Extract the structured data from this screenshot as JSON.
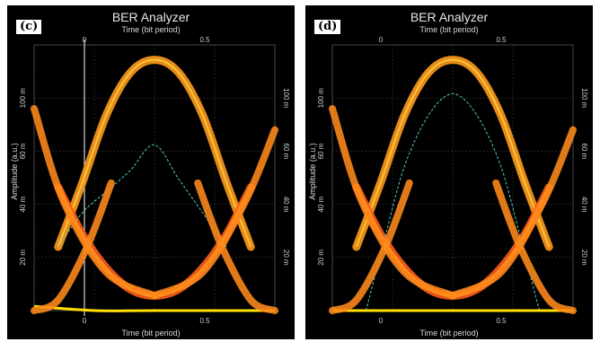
{
  "chart_data": [
    {
      "panel": "(c)",
      "type": "line",
      "title": "BER Analyzer",
      "xlabel": "Time (bit period)",
      "ylabel": "Amplitude (a.u.)",
      "xlim": [
        0,
        1
      ],
      "ylim": [
        0,
        1.25
      ],
      "x_ticks_top": [
        "0",
        "0.5"
      ],
      "x_ticks_bottom": [
        "0",
        "0.5"
      ],
      "y_ticks": [
        "20 m",
        "40 m",
        "60 m",
        "100 m"
      ],
      "y_ticks_right": [
        "20 m",
        "40 m",
        "60 m",
        "100 m"
      ],
      "cursor_x": 0,
      "grid": true,
      "series": [
        {
          "role": "eye-top",
          "color": "#ff9a1a",
          "x": [
            0.1,
            0.2,
            0.3,
            0.4,
            0.5,
            0.6,
            0.7,
            0.8,
            0.9
          ],
          "y": [
            0.3,
            0.6,
            0.92,
            1.12,
            1.18,
            1.12,
            0.92,
            0.6,
            0.3
          ]
        },
        {
          "role": "eye-bottom",
          "color": "#ff5a1a",
          "x": [
            0.1,
            0.2,
            0.3,
            0.4,
            0.5,
            0.6,
            0.7,
            0.8,
            0.9
          ],
          "y": [
            0.58,
            0.36,
            0.2,
            0.1,
            0.07,
            0.1,
            0.2,
            0.36,
            0.58
          ]
        },
        {
          "role": "q-factor",
          "color": "#4fd0c0",
          "x": [
            0.1,
            0.2,
            0.3,
            0.4,
            0.5,
            0.6,
            0.7,
            0.8
          ],
          "y": [
            0.3,
            0.46,
            0.56,
            0.66,
            0.78,
            0.62,
            0.46,
            0.3
          ]
        },
        {
          "role": "threshold",
          "color": "#ffe000",
          "x": [
            0,
            0.25,
            0.5,
            0.75,
            1.0
          ],
          "y": [
            0.02,
            0.0,
            0.0,
            0.0,
            0.0
          ]
        }
      ]
    },
    {
      "panel": "(d)",
      "type": "line",
      "title": "BER Analyzer",
      "xlabel": "Time (bit period)",
      "ylabel": "Amplitude (a.u.)",
      "xlim": [
        0,
        1
      ],
      "ylim": [
        0,
        1.25
      ],
      "x_ticks_top": [
        "0",
        "0.5"
      ],
      "x_ticks_bottom": [
        "0",
        "0.5"
      ],
      "y_ticks": [
        "20 m",
        "40 m",
        "60 m",
        "100 m"
      ],
      "y_ticks_right": [
        "20 m",
        "40 m",
        "60 m",
        "100 m"
      ],
      "grid": true,
      "series": [
        {
          "role": "eye-top",
          "color": "#ff9a1a",
          "x": [
            0.1,
            0.2,
            0.3,
            0.4,
            0.5,
            0.6,
            0.7,
            0.8,
            0.9
          ],
          "y": [
            0.3,
            0.6,
            0.92,
            1.12,
            1.18,
            1.12,
            0.92,
            0.6,
            0.3
          ]
        },
        {
          "role": "eye-bottom",
          "color": "#ff5a1a",
          "x": [
            0.1,
            0.2,
            0.3,
            0.4,
            0.5,
            0.6,
            0.7,
            0.8,
            0.9
          ],
          "y": [
            0.58,
            0.36,
            0.2,
            0.1,
            0.07,
            0.1,
            0.2,
            0.36,
            0.58
          ]
        },
        {
          "role": "q-factor",
          "color": "#4fd0c0",
          "x": [
            0.14,
            0.22,
            0.3,
            0.4,
            0.5,
            0.6,
            0.7,
            0.78,
            0.86
          ],
          "y": [
            0.0,
            0.35,
            0.68,
            0.92,
            1.02,
            0.92,
            0.68,
            0.35,
            0.0
          ]
        },
        {
          "role": "threshold",
          "color": "#ffe000",
          "x": [
            0,
            0.25,
            0.5,
            0.75,
            1.0
          ],
          "y": [
            0.0,
            0.0,
            0.0,
            0.0,
            0.0
          ]
        }
      ]
    }
  ],
  "colors": {
    "background": "#000000",
    "grid": "#3a3a3a",
    "cursor": "#ffffff"
  }
}
